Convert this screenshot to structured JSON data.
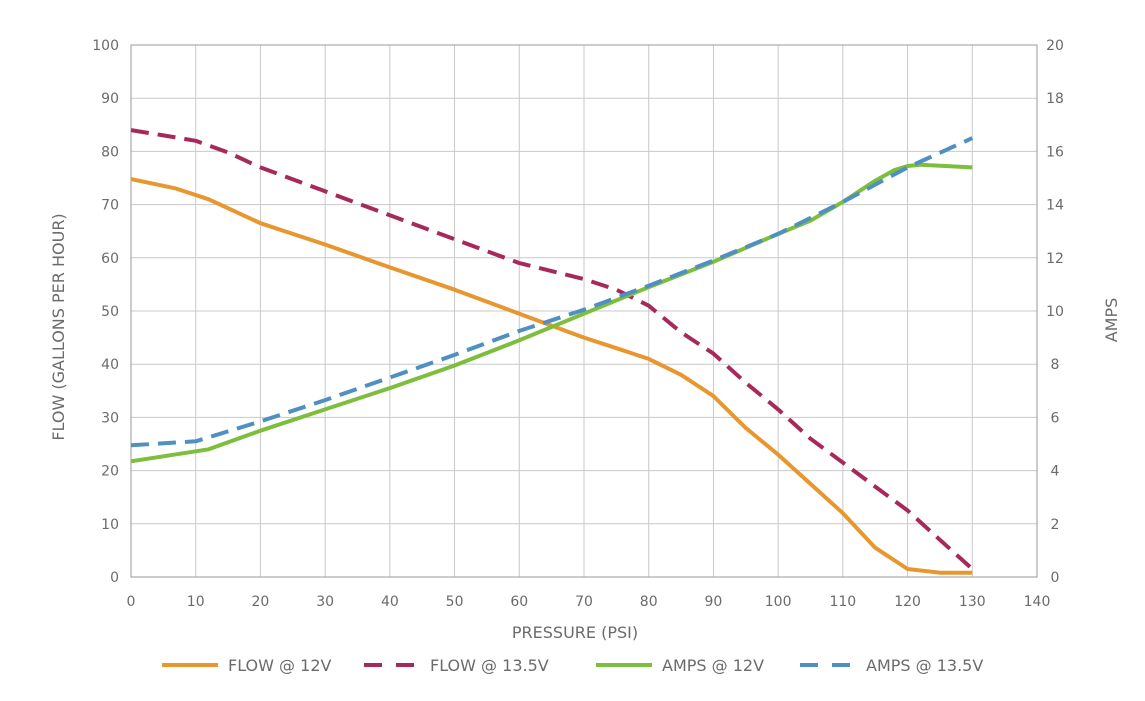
{
  "chart_data": {
    "type": "line",
    "xlabel": "PRESSURE (PSI)",
    "ylabel": "FLOW (GALLONS PER HOUR)",
    "y2label": "AMPS",
    "xlim": [
      0,
      140
    ],
    "ylim": [
      0,
      100
    ],
    "y2lim": [
      0,
      20
    ],
    "x_ticks": [
      "0",
      "10",
      "20",
      "30",
      "40",
      "50",
      "60",
      "70",
      "80",
      "90",
      "100",
      "110",
      "120",
      "130",
      "140"
    ],
    "y_ticks": [
      "0",
      "10",
      "20",
      "30",
      "40",
      "50",
      "60",
      "70",
      "80",
      "90",
      "100"
    ],
    "y2_ticks": [
      "0",
      "2",
      "4",
      "6",
      "8",
      "10",
      "12",
      "14",
      "16",
      "18",
      "20"
    ],
    "grid": true,
    "legend_position": "bottom",
    "series": [
      {
        "name": "FLOW @ 12V",
        "axis": "left",
        "color": "#E8962E",
        "dash": "solid",
        "points": [
          [
            0,
            74.8
          ],
          [
            7,
            73
          ],
          [
            12,
            71
          ],
          [
            20,
            66.5
          ],
          [
            25,
            64.5
          ],
          [
            30,
            62.5
          ],
          [
            40,
            58.2
          ],
          [
            50,
            54
          ],
          [
            60,
            49.5
          ],
          [
            70,
            45
          ],
          [
            75,
            43
          ],
          [
            80,
            41
          ],
          [
            85,
            38
          ],
          [
            90,
            34
          ],
          [
            95,
            28
          ],
          [
            100,
            23
          ],
          [
            105,
            17.5
          ],
          [
            110,
            12
          ],
          [
            115,
            5.5
          ],
          [
            120,
            1.5
          ],
          [
            125,
            0.8
          ],
          [
            130,
            0.8
          ]
        ]
      },
      {
        "name": "FLOW @ 13.5V",
        "axis": "left",
        "color": "#A6295B",
        "dash": "dashed",
        "points": [
          [
            0,
            84
          ],
          [
            5,
            83
          ],
          [
            10,
            82
          ],
          [
            15,
            79.8
          ],
          [
            20,
            77
          ],
          [
            30,
            72.5
          ],
          [
            40,
            68
          ],
          [
            50,
            63.5
          ],
          [
            60,
            59
          ],
          [
            70,
            56
          ],
          [
            75,
            54
          ],
          [
            80,
            51
          ],
          [
            85,
            46
          ],
          [
            90,
            42
          ],
          [
            95,
            36.5
          ],
          [
            100,
            31.5
          ],
          [
            105,
            26
          ],
          [
            110,
            21.5
          ],
          [
            115,
            17
          ],
          [
            120,
            12.5
          ],
          [
            125,
            7
          ],
          [
            130,
            1.5
          ]
        ]
      },
      {
        "name": "AMPS @ 12V",
        "axis": "right",
        "color": "#7DBE3C",
        "dash": "solid",
        "points": [
          [
            0,
            4.35
          ],
          [
            12,
            4.8
          ],
          [
            20,
            5.5
          ],
          [
            30,
            6.3
          ],
          [
            40,
            7.1
          ],
          [
            50,
            7.95
          ],
          [
            60,
            8.9
          ],
          [
            70,
            9.9
          ],
          [
            80,
            10.9
          ],
          [
            90,
            11.85
          ],
          [
            100,
            12.9
          ],
          [
            105,
            13.4
          ],
          [
            110,
            14.1
          ],
          [
            115,
            14.9
          ],
          [
            118,
            15.3
          ],
          [
            120,
            15.45
          ],
          [
            122,
            15.5
          ],
          [
            130,
            15.4
          ]
        ]
      },
      {
        "name": "AMPS @ 13.5V",
        "axis": "right",
        "color": "#4F8FC2",
        "dash": "dashed",
        "points": [
          [
            0,
            4.95
          ],
          [
            10,
            5.1
          ],
          [
            20,
            5.85
          ],
          [
            30,
            6.65
          ],
          [
            40,
            7.5
          ],
          [
            50,
            8.35
          ],
          [
            60,
            9.25
          ],
          [
            70,
            10.05
          ],
          [
            80,
            10.95
          ],
          [
            90,
            11.9
          ],
          [
            100,
            12.9
          ],
          [
            110,
            14.1
          ],
          [
            120,
            15.4
          ],
          [
            130,
            16.5
          ]
        ]
      }
    ]
  }
}
